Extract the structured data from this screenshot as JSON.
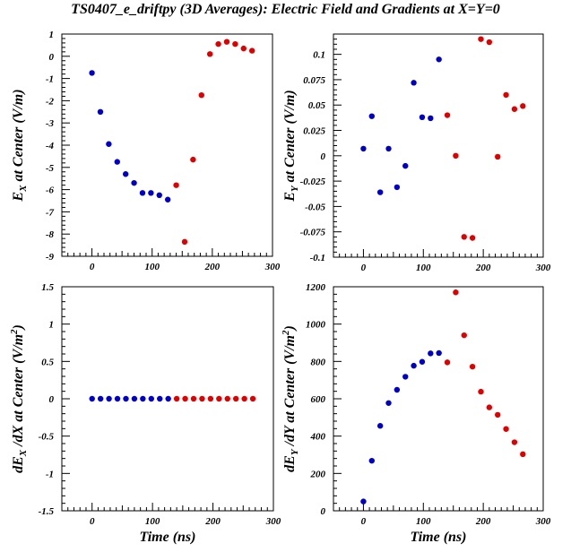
{
  "title": "TS0407_e_driftpy (3D Averages): Electric Field and Gradients at X=Y=0",
  "colors": {
    "blue": "#0000cc",
    "red": "#e00000",
    "axis": "#000000"
  },
  "chart_data": [
    {
      "type": "scatter",
      "xlabel": "",
      "ylabel": "E_X at Center (V/m)",
      "xlim": [
        -50,
        300
      ],
      "ylim": [
        -9,
        1
      ],
      "xticks": [
        "0",
        "100",
        "200",
        "300"
      ],
      "yticks": [
        "1",
        "0",
        "-1",
        "-2",
        "-3",
        "-4",
        "-5",
        "-6",
        "-7",
        "-8",
        "-9"
      ],
      "grid": false,
      "series": [
        {
          "color": "blue",
          "x": [
            0,
            14,
            28,
            42,
            56,
            70,
            84,
            98,
            112,
            126
          ],
          "y": [
            -0.75,
            -2.5,
            -3.95,
            -4.75,
            -5.3,
            -5.7,
            -6.15,
            -6.15,
            -6.25,
            -6.45
          ]
        },
        {
          "color": "red",
          "x": [
            140,
            154,
            168,
            182,
            196,
            210,
            224,
            238,
            252,
            266
          ],
          "y": [
            -5.8,
            -8.35,
            -4.65,
            -1.75,
            0.1,
            0.55,
            0.65,
            0.55,
            0.35,
            0.25
          ]
        }
      ]
    },
    {
      "type": "scatter",
      "xlabel": "",
      "ylabel": "E_Y at Center (V/m)",
      "xlim": [
        -50,
        300
      ],
      "ylim": [
        -0.1,
        0.12
      ],
      "xticks": [
        "0",
        "100",
        "200",
        "300"
      ],
      "yticks": [
        "0.1",
        "0.075",
        "0.05",
        "0.025",
        "0",
        "-0.025",
        "-0.05",
        "-0.075",
        "-0.1"
      ],
      "grid": false,
      "series": [
        {
          "color": "blue",
          "x": [
            0,
            14,
            28,
            42,
            56,
            70,
            84,
            98,
            112,
            126
          ],
          "y": [
            0.007,
            0.039,
            -0.036,
            0.007,
            -0.031,
            -0.01,
            0.072,
            0.038,
            0.037,
            0.095
          ]
        },
        {
          "color": "red",
          "x": [
            140,
            154,
            168,
            182,
            196,
            210,
            224,
            238,
            252,
            266
          ],
          "y": [
            0.04,
            0.0,
            -0.08,
            -0.081,
            0.115,
            0.112,
            -0.001,
            0.06,
            0.046,
            0.049
          ]
        }
      ]
    },
    {
      "type": "scatter",
      "xlabel": "Time (ns)",
      "ylabel": "dE_X /dX at Center (V/m^2)",
      "xlim": [
        -50,
        300
      ],
      "ylim": [
        -1.5,
        1.5
      ],
      "xticks": [
        "0",
        "100",
        "200",
        "300"
      ],
      "yticks": [
        "1.5",
        "1",
        "0.5",
        "0",
        "-0.5",
        "-1",
        "-1.5"
      ],
      "grid": false,
      "series": [
        {
          "color": "blue",
          "x": [
            0,
            14,
            28,
            42,
            56,
            70,
            84,
            98,
            112,
            126
          ],
          "y": [
            0,
            0,
            0,
            0,
            0,
            0,
            0,
            0,
            0,
            0
          ]
        },
        {
          "color": "red",
          "x": [
            140,
            154,
            168,
            182,
            196,
            210,
            224,
            238,
            252,
            266
          ],
          "y": [
            0,
            0,
            0,
            0,
            0,
            0,
            0,
            0,
            0,
            0
          ]
        }
      ]
    },
    {
      "type": "scatter",
      "xlabel": "Time (ns)",
      "ylabel": "dE_Y /dY at Center (V/m^2)",
      "xlim": [
        -50,
        300
      ],
      "ylim": [
        0,
        1200
      ],
      "xticks": [
        "0",
        "100",
        "200",
        "300"
      ],
      "yticks": [
        "1200",
        "1000",
        "800",
        "600",
        "400",
        "200",
        "0"
      ],
      "grid": false,
      "series": [
        {
          "color": "blue",
          "x": [
            0,
            14,
            28,
            42,
            56,
            70,
            84,
            98,
            112,
            126
          ],
          "y": [
            50,
            268,
            455,
            577,
            648,
            718,
            777,
            798,
            843,
            845
          ]
        },
        {
          "color": "red",
          "x": [
            140,
            154,
            168,
            182,
            196,
            210,
            224,
            238,
            252,
            266
          ],
          "y": [
            795,
            1170,
            940,
            772,
            638,
            554,
            514,
            438,
            367,
            303
          ]
        }
      ]
    }
  ]
}
